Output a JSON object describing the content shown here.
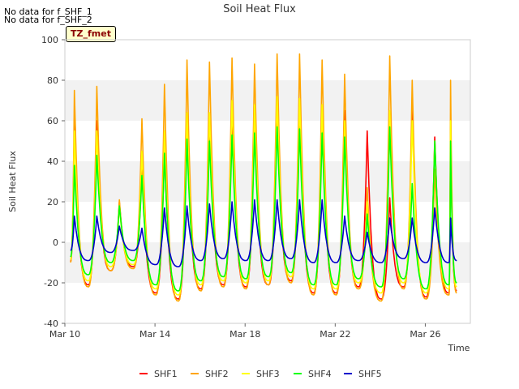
{
  "notes": [
    "No data for f_SHF_1",
    "No data for f_SHF_2"
  ],
  "tag": "TZ_fmet",
  "chart_data": {
    "type": "line",
    "title": "Soil Heat Flux",
    "xlabel": "Time",
    "ylabel": "Soil Heat Flux",
    "x_ticks": [
      "Mar 10",
      "Mar 14",
      "Mar 18",
      "Mar 22",
      "Mar 26"
    ],
    "x_range_days": [
      10,
      28
    ],
    "ylim": [
      -40,
      100
    ],
    "y_ticks": [
      -40,
      -20,
      0,
      20,
      40,
      60,
      80,
      100
    ],
    "grid": "horizontal bands",
    "legend": "bottom",
    "days": [
      10.5,
      11.5,
      12.5,
      13.5,
      14.5,
      15.5,
      16.5,
      17.5,
      18.5,
      19.5,
      20.5,
      21.5,
      22.5,
      23.5,
      24.5,
      25.5,
      26.5,
      27.2
    ],
    "series": [
      {
        "name": "SHF1",
        "color": "#ff0000",
        "peaks": [
          60,
          60,
          20,
          37,
          47,
          58,
          60,
          65,
          63,
          67,
          68,
          66,
          65,
          55,
          22,
          68,
          52,
          57
        ],
        "troughs": [
          -21,
          -14,
          -12,
          -25,
          -28,
          -23,
          -21,
          -22,
          -21,
          -19,
          -25,
          -25,
          -22,
          -28,
          -22,
          -27,
          -25,
          -24
        ]
      },
      {
        "name": "SHF2",
        "color": "#ffa500",
        "peaks": [
          75,
          77,
          21,
          61,
          78,
          90,
          89,
          91,
          88,
          93,
          93,
          90,
          83,
          27,
          92,
          80,
          36,
          80
        ],
        "troughs": [
          -22,
          -14,
          -13,
          -26,
          -29,
          -24,
          -22,
          -23,
          -21,
          -20,
          -26,
          -26,
          -23,
          -29,
          -23,
          -28,
          -26,
          -25
        ]
      },
      {
        "name": "SHF3",
        "color": "#ffff00",
        "peaks": [
          55,
          55,
          18,
          45,
          55,
          64,
          64,
          70,
          68,
          72,
          71,
          68,
          60,
          20,
          65,
          60,
          50,
          60
        ],
        "troughs": [
          -19,
          -12,
          -11,
          -23,
          -26,
          -21,
          -19,
          -20,
          -19,
          -17,
          -23,
          -23,
          -20,
          -25,
          -20,
          -25,
          -23,
          -22
        ]
      },
      {
        "name": "SHF4",
        "color": "#00ff00",
        "peaks": [
          38,
          43,
          18,
          33,
          44,
          51,
          50,
          53,
          54,
          57,
          56,
          54,
          52,
          14,
          57,
          29,
          50,
          50
        ],
        "troughs": [
          -16,
          -10,
          -9,
          -21,
          -24,
          -19,
          -17,
          -18,
          -17,
          -15,
          -21,
          -21,
          -18,
          -22,
          -18,
          -23,
          -21,
          -20
        ]
      },
      {
        "name": "SHF5",
        "color": "#0000cc",
        "peaks": [
          13,
          13,
          8,
          7,
          17,
          18,
          19,
          20,
          21,
          21,
          21,
          21,
          13,
          5,
          12,
          12,
          17,
          12
        ],
        "troughs": [
          -9,
          -5,
          -4,
          -11,
          -12,
          -9,
          -8,
          -9,
          -9,
          -8,
          -10,
          -10,
          -9,
          -10,
          -8,
          -10,
          -10,
          -9
        ]
      }
    ]
  }
}
